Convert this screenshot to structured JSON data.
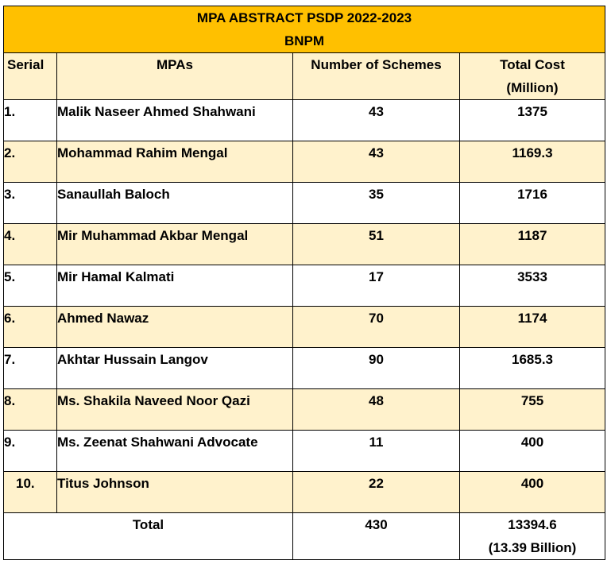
{
  "title": "MPA ABSTRACT PSDP 2022-2023",
  "subtitle": "BNPM",
  "headers": {
    "serial": "Serial",
    "mpas": "MPAs",
    "schemes": "Number of Schemes",
    "cost_line1": "Total Cost",
    "cost_line2": "(Million)"
  },
  "rows": [
    {
      "serial": "1.",
      "name": "Malik Naseer Ahmed Shahwani",
      "schemes": "43",
      "cost": "1375"
    },
    {
      "serial": "2.",
      "name": "Mohammad Rahim Mengal",
      "schemes": "43",
      "cost": "1169.3"
    },
    {
      "serial": "3.",
      "name": "Sanaullah Baloch",
      "schemes": "35",
      "cost": "1716"
    },
    {
      "serial": "4.",
      "name": "Mir Muhammad Akbar Mengal",
      "schemes": "51",
      "cost": "1187"
    },
    {
      "serial": "5.",
      "name": "Mir Hamal Kalmati",
      "schemes": "17",
      "cost": "3533"
    },
    {
      "serial": "6.",
      "name": "Ahmed Nawaz",
      "schemes": "70",
      "cost": "1174"
    },
    {
      "serial": "7.",
      "name": "Akhtar Hussain Langov",
      "schemes": "90",
      "cost": "1685.3"
    },
    {
      "serial": "8.",
      "name": "Ms. Shakila Naveed Noor Qazi",
      "schemes": "48",
      "cost": "755"
    },
    {
      "serial": "9.",
      "name": "Ms. Zeenat Shahwani Advocate",
      "schemes": "11",
      "cost": "400"
    },
    {
      "serial": "10.",
      "name": "Titus Johnson",
      "schemes": "22",
      "cost": "400"
    }
  ],
  "total": {
    "label": "Total",
    "schemes": "430",
    "cost_line1": "13394.6",
    "cost_line2": "(13.39 Billion)"
  },
  "colors": {
    "title_fill": "#ffc000",
    "band_fill": "#fff2cc"
  }
}
